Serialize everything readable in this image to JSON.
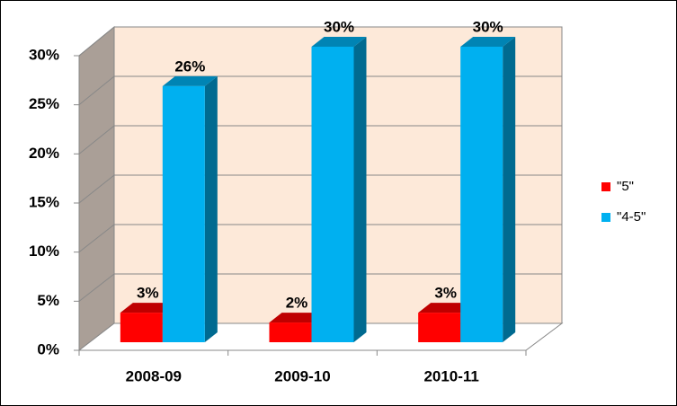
{
  "chart_data": {
    "type": "bar3d",
    "categories": [
      "2008-09",
      "2009-10",
      "2010-11"
    ],
    "series": [
      {
        "name": "\"5\"",
        "color": "#ff0000",
        "values": [
          3,
          2,
          3
        ],
        "value_labels": [
          "3%",
          "2%",
          "3%"
        ]
      },
      {
        "name": "\"4-5\"",
        "color": "#00b0f0",
        "values": [
          26,
          30,
          30
        ],
        "value_labels": [
          "26%",
          "30%",
          "30%"
        ]
      }
    ],
    "ylim": [
      0,
      30
    ],
    "yticks": [
      {
        "value": 0,
        "label": "0%"
      },
      {
        "value": 5,
        "label": "5%"
      },
      {
        "value": 10,
        "label": "10%"
      },
      {
        "value": 15,
        "label": "15%"
      },
      {
        "value": 20,
        "label": "20%"
      },
      {
        "value": 25,
        "label": "25%"
      },
      {
        "value": 30,
        "label": "30%"
      }
    ],
    "grid": true,
    "legend": "right"
  }
}
